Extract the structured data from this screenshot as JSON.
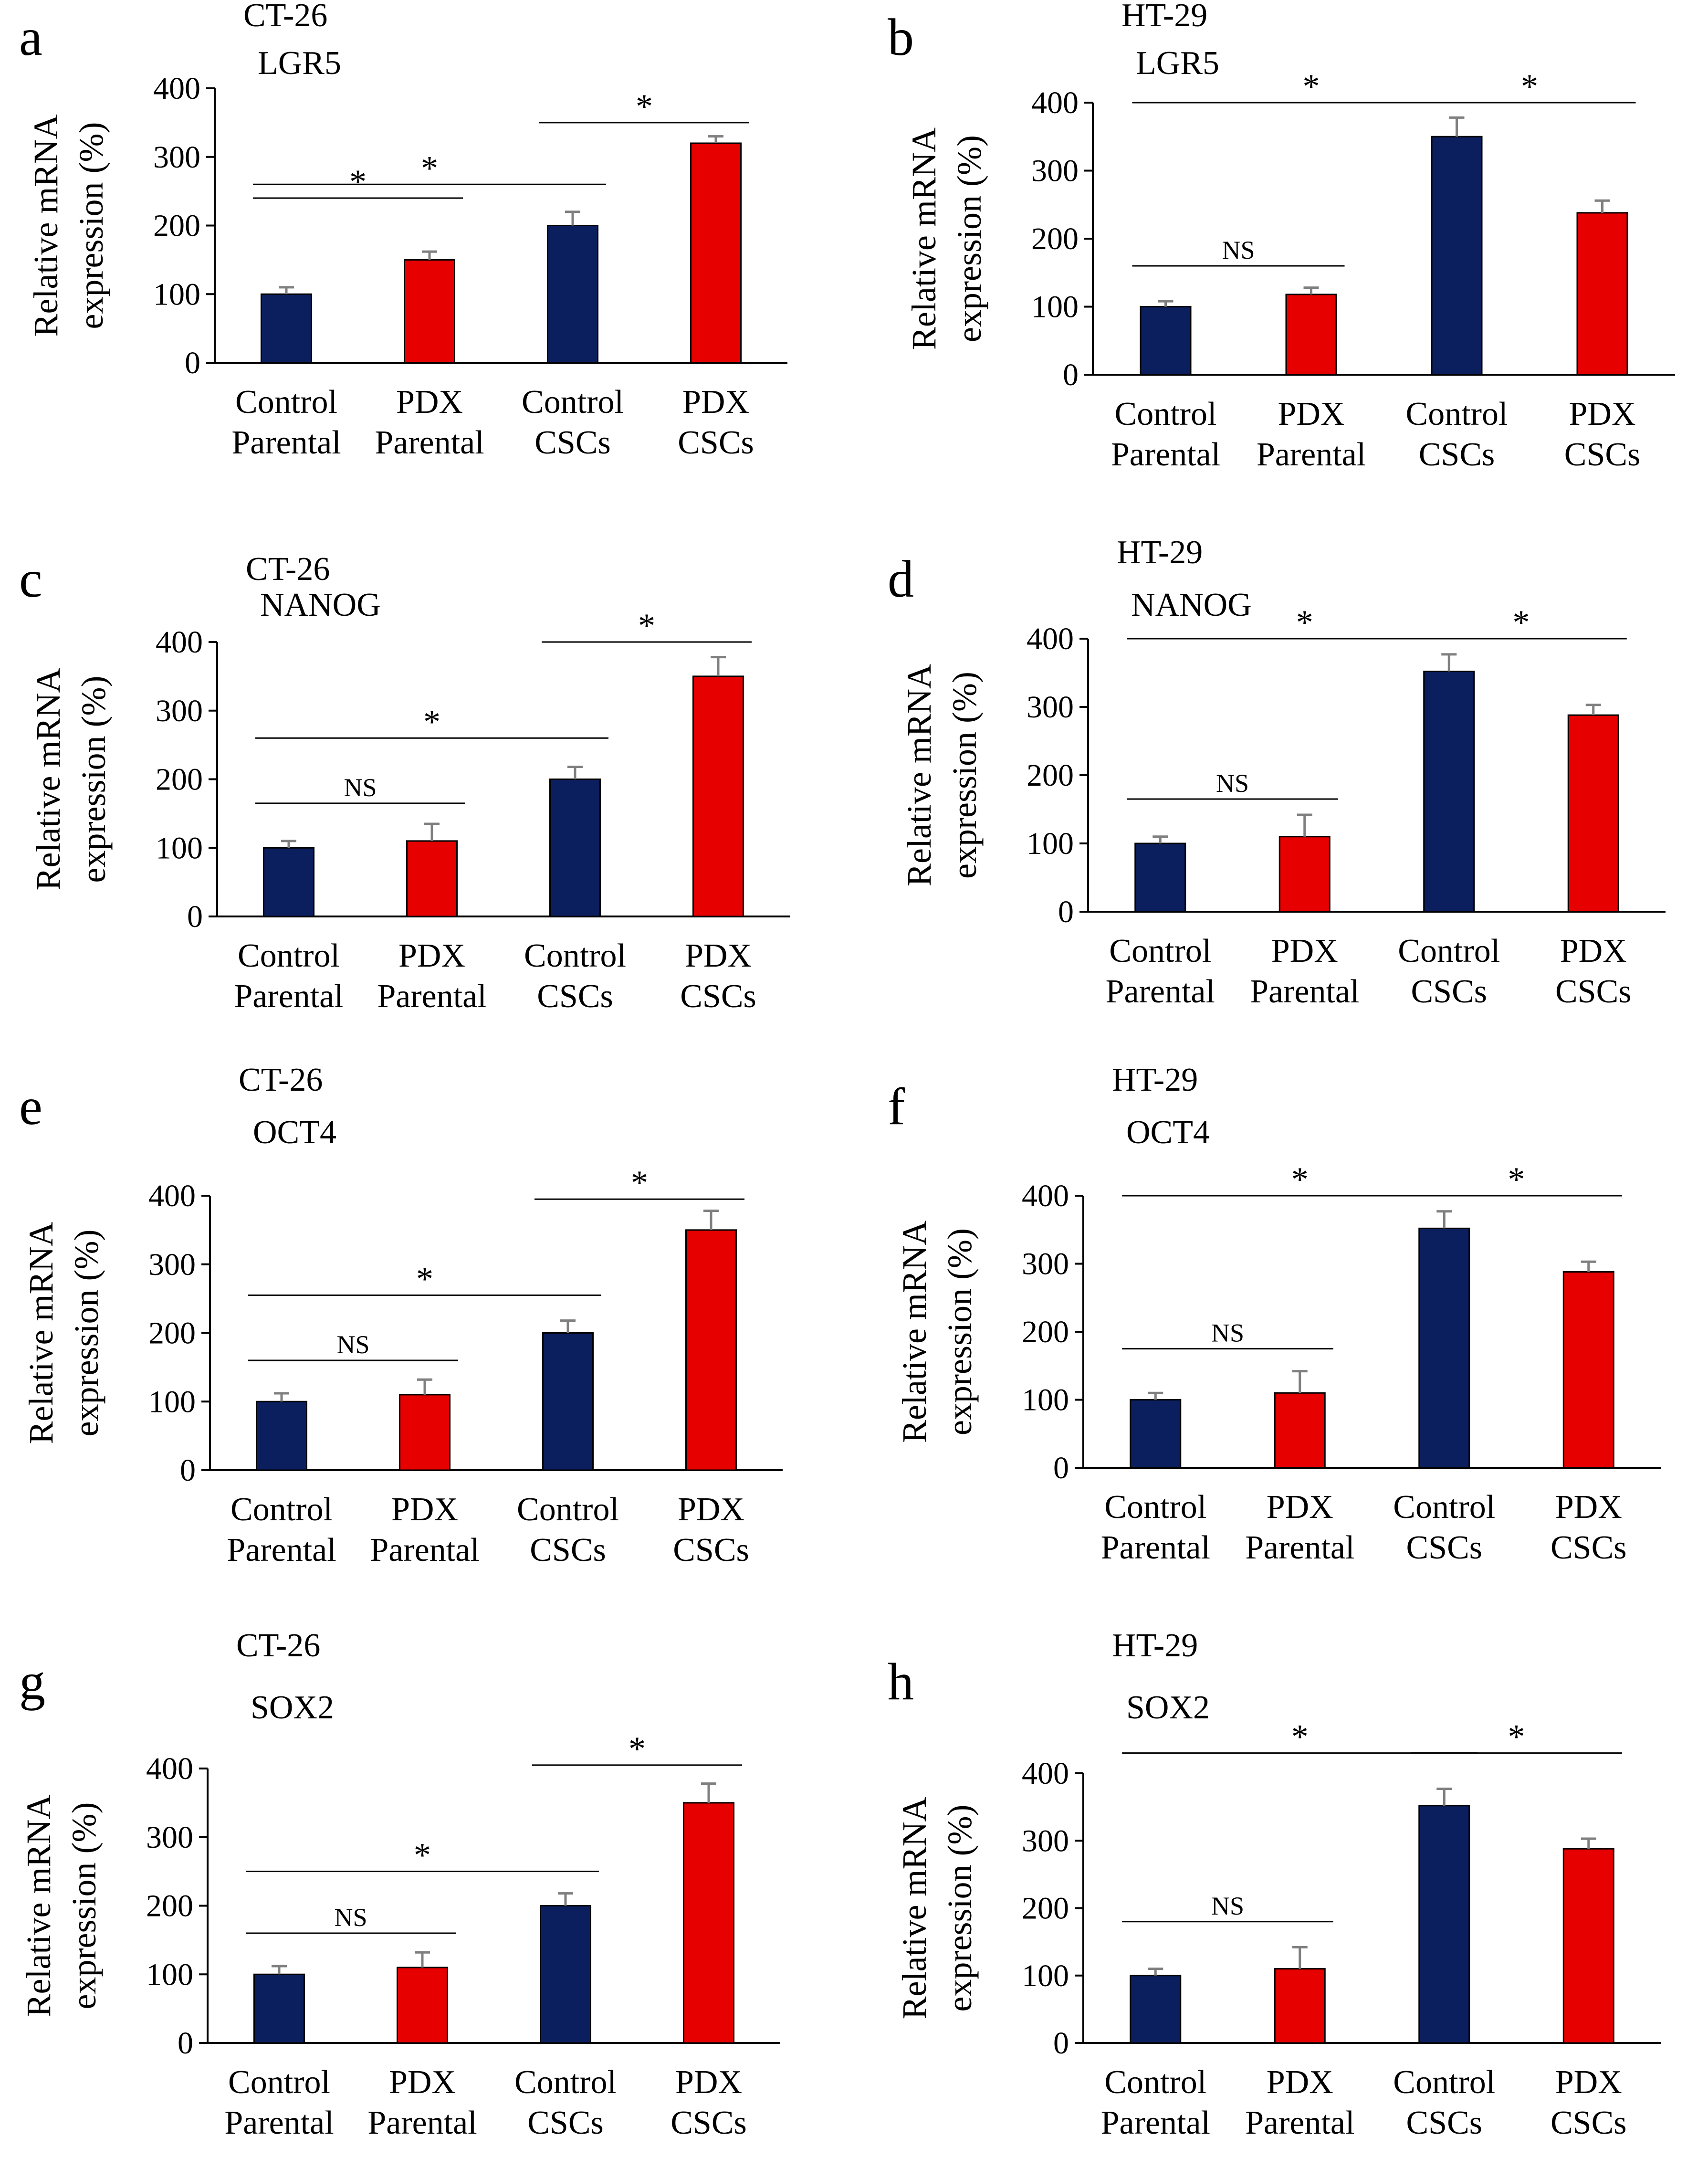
{
  "figure": {
    "colors": {
      "control": "#0b1f5e",
      "pdx": "#e60000",
      "axis": "#000000",
      "error_bar": "#7f7f7f",
      "significance_line": "#000000"
    }
  },
  "chart_data": [
    {
      "id": "a",
      "panel_letter": "a",
      "type": "bar",
      "title_line1": "CT-26",
      "title_line2": "LGR5",
      "ylabel_line1": "Relative mRNA",
      "ylabel_line2": "expression (%)",
      "ylim": [
        0,
        400
      ],
      "yticks": [
        0,
        100,
        200,
        300,
        400
      ],
      "categories": [
        [
          "Control",
          "Parental"
        ],
        [
          "PDX",
          "Parental"
        ],
        [
          "Control",
          "CSCs"
        ],
        [
          "PDX",
          "CSCs"
        ]
      ],
      "groups": [
        "control",
        "pdx",
        "control",
        "pdx"
      ],
      "values": [
        100,
        150,
        200,
        320
      ],
      "errors": [
        10,
        12,
        20,
        10
      ],
      "comparisons": [
        {
          "from": 0,
          "to": 1,
          "label": "*",
          "y": 240
        },
        {
          "from": 0,
          "to": 2,
          "label": "*",
          "y": 260
        },
        {
          "from": 2,
          "to": 3,
          "label": "*",
          "y": 350
        }
      ]
    },
    {
      "id": "b",
      "panel_letter": "b",
      "type": "bar",
      "title_line1": "HT-29",
      "title_line2": "LGR5",
      "ylabel_line1": "Relative mRNA",
      "ylabel_line2": "expression (%)",
      "ylim": [
        0,
        400
      ],
      "yticks": [
        0,
        100,
        200,
        300,
        400
      ],
      "categories": [
        [
          "Control",
          "Parental"
        ],
        [
          "PDX",
          "Parental"
        ],
        [
          "Control",
          "CSCs"
        ],
        [
          "PDX",
          "CSCs"
        ]
      ],
      "groups": [
        "control",
        "pdx",
        "control",
        "pdx"
      ],
      "values": [
        100,
        118,
        350,
        238
      ],
      "errors": [
        8,
        10,
        28,
        18
      ],
      "comparisons": [
        {
          "from": 0,
          "to": 1,
          "label": "NS",
          "y": 160
        },
        {
          "from": 0,
          "to": 2,
          "label": "*",
          "y": 400
        },
        {
          "from": 2,
          "to": 3,
          "label": "*",
          "y": 400
        }
      ]
    },
    {
      "id": "c",
      "panel_letter": "c",
      "type": "bar",
      "title_line1": "CT-26",
      "title_line2": "NANOG",
      "ylabel_line1": "Relative mRNA",
      "ylabel_line2": "expression (%)",
      "ylim": [
        0,
        400
      ],
      "yticks": [
        0,
        100,
        200,
        300,
        400
      ],
      "categories": [
        [
          "Control",
          "Parental"
        ],
        [
          "PDX",
          "Parental"
        ],
        [
          "Control",
          "CSCs"
        ],
        [
          "PDX",
          "CSCs"
        ]
      ],
      "groups": [
        "control",
        "pdx",
        "control",
        "pdx"
      ],
      "values": [
        100,
        110,
        200,
        350
      ],
      "errors": [
        10,
        25,
        18,
        28
      ],
      "comparisons": [
        {
          "from": 0,
          "to": 1,
          "label": "NS",
          "y": 165
        },
        {
          "from": 0,
          "to": 2,
          "label": "*",
          "y": 260
        },
        {
          "from": 2,
          "to": 3,
          "label": "*",
          "y": 400
        }
      ]
    },
    {
      "id": "d",
      "panel_letter": "d",
      "type": "bar",
      "title_line1": "HT-29",
      "title_line2": "NANOG",
      "ylabel_line1": "Relative mRNA",
      "ylabel_line2": "expression (%)",
      "ylim": [
        0,
        400
      ],
      "yticks": [
        0,
        100,
        200,
        300,
        400
      ],
      "categories": [
        [
          "Control",
          "Parental"
        ],
        [
          "PDX",
          "Parental"
        ],
        [
          "Control",
          "CSCs"
        ],
        [
          "PDX",
          "CSCs"
        ]
      ],
      "groups": [
        "control",
        "pdx",
        "control",
        "pdx"
      ],
      "values": [
        100,
        110,
        352,
        288
      ],
      "errors": [
        10,
        32,
        25,
        15
      ],
      "comparisons": [
        {
          "from": 0,
          "to": 1,
          "label": "NS",
          "y": 165
        },
        {
          "from": 0,
          "to": 2,
          "label": "*",
          "y": 400
        },
        {
          "from": 2,
          "to": 3,
          "label": "*",
          "y": 400
        }
      ]
    },
    {
      "id": "e",
      "panel_letter": "e",
      "type": "bar",
      "title_line1": "CT-26",
      "title_line2": "OCT4",
      "ylabel_line1": "Relative mRNA",
      "ylabel_line2": "expression (%)",
      "ylim": [
        0,
        400
      ],
      "yticks": [
        0,
        100,
        200,
        300,
        400
      ],
      "categories": [
        [
          "Control",
          "Parental"
        ],
        [
          "PDX",
          "Parental"
        ],
        [
          "Control",
          "CSCs"
        ],
        [
          "PDX",
          "CSCs"
        ]
      ],
      "groups": [
        "control",
        "pdx",
        "control",
        "pdx"
      ],
      "values": [
        100,
        110,
        200,
        350
      ],
      "errors": [
        12,
        22,
        18,
        28
      ],
      "comparisons": [
        {
          "from": 0,
          "to": 1,
          "label": "NS",
          "y": 160
        },
        {
          "from": 0,
          "to": 2,
          "label": "*",
          "y": 255
        },
        {
          "from": 2,
          "to": 3,
          "label": "*",
          "y": 395
        }
      ]
    },
    {
      "id": "f",
      "panel_letter": "f",
      "type": "bar",
      "title_line1": "HT-29",
      "title_line2": "OCT4",
      "ylabel_line1": "Relative mRNA",
      "ylabel_line2": "expression (%)",
      "ylim": [
        0,
        400
      ],
      "yticks": [
        0,
        100,
        200,
        300,
        400
      ],
      "categories": [
        [
          "Control",
          "Parental"
        ],
        [
          "PDX",
          "Parental"
        ],
        [
          "Control",
          "CSCs"
        ],
        [
          "PDX",
          "CSCs"
        ]
      ],
      "groups": [
        "control",
        "pdx",
        "control",
        "pdx"
      ],
      "values": [
        100,
        110,
        352,
        288
      ],
      "errors": [
        10,
        32,
        25,
        15
      ],
      "comparisons": [
        {
          "from": 0,
          "to": 1,
          "label": "NS",
          "y": 175
        },
        {
          "from": 0,
          "to": 2,
          "label": "*",
          "y": 400
        },
        {
          "from": 2,
          "to": 3,
          "label": "*",
          "y": 400
        }
      ]
    },
    {
      "id": "g",
      "panel_letter": "g",
      "type": "bar",
      "title_line1": "CT-26",
      "title_line2": "SOX2",
      "ylabel_line1": "Relative mRNA",
      "ylabel_line2": "expression (%)",
      "ylim": [
        0,
        400
      ],
      "yticks": [
        0,
        100,
        200,
        300,
        400
      ],
      "categories": [
        [
          "Control",
          "Parental"
        ],
        [
          "PDX",
          "Parental"
        ],
        [
          "Control",
          "CSCs"
        ],
        [
          "PDX",
          "CSCs"
        ]
      ],
      "groups": [
        "control",
        "pdx",
        "control",
        "pdx"
      ],
      "values": [
        100,
        110,
        200,
        350
      ],
      "errors": [
        12,
        22,
        18,
        28
      ],
      "comparisons": [
        {
          "from": 0,
          "to": 1,
          "label": "NS",
          "y": 160
        },
        {
          "from": 0,
          "to": 2,
          "label": "*",
          "y": 250
        },
        {
          "from": 2,
          "to": 3,
          "label": "*",
          "y": 405
        }
      ]
    },
    {
      "id": "h",
      "panel_letter": "h",
      "type": "bar",
      "title_line1": "HT-29",
      "title_line2": "SOX2",
      "ylabel_line1": "Relative mRNA",
      "ylabel_line2": "expression (%)",
      "ylim": [
        0,
        400
      ],
      "yticks": [
        0,
        100,
        200,
        300,
        400
      ],
      "categories": [
        [
          "Control",
          "Parental"
        ],
        [
          "PDX",
          "Parental"
        ],
        [
          "Control",
          "CSCs"
        ],
        [
          "PDX",
          "CSCs"
        ]
      ],
      "groups": [
        "control",
        "pdx",
        "control",
        "pdx"
      ],
      "values": [
        100,
        110,
        352,
        288
      ],
      "errors": [
        10,
        32,
        25,
        15
      ],
      "comparisons": [
        {
          "from": 0,
          "to": 1,
          "label": "NS",
          "y": 180
        },
        {
          "from": 0,
          "to": 2,
          "label": "*",
          "y": 430
        },
        {
          "from": 2,
          "to": 3,
          "label": "*",
          "y": 430
        }
      ]
    }
  ]
}
